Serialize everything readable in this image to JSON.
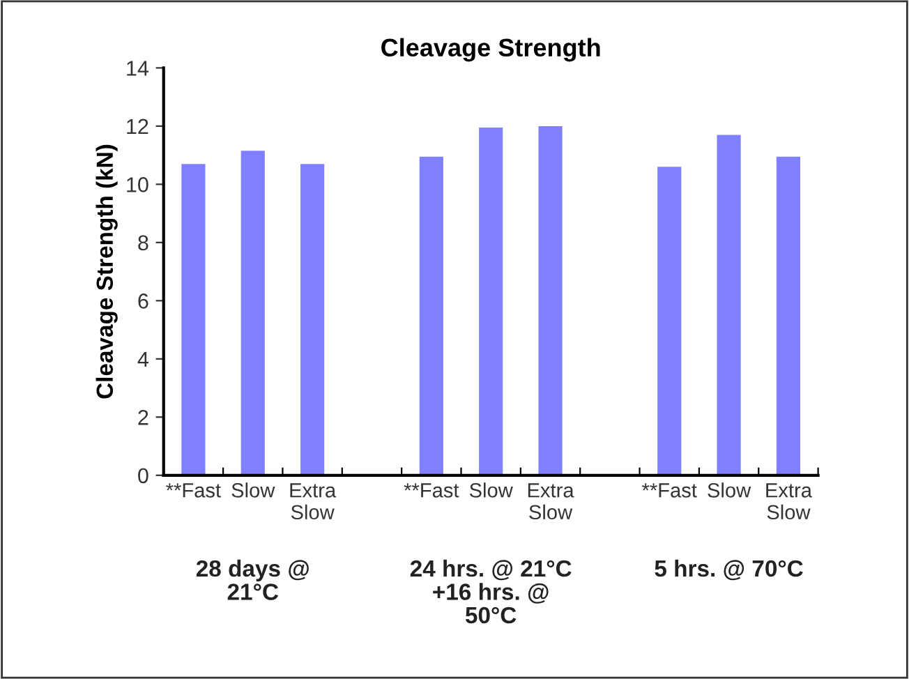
{
  "chart_data": {
    "type": "bar",
    "title": "Cleavage Strength",
    "ylabel": "Cleavage Strength (kN)",
    "categories": [
      "**Fast",
      "Slow",
      "Extra\nSlow",
      null,
      "**Fast",
      "Slow",
      "Extra\nSlow",
      null,
      "**Fast",
      "Slow",
      "Extra\nSlow"
    ],
    "values": [
      10.7,
      11.15,
      10.7,
      null,
      10.95,
      11.95,
      12.0,
      null,
      10.6,
      11.7,
      10.95
    ],
    "color": "#8080ff",
    "ylim": [
      0,
      14
    ],
    "yticks": [
      0,
      2,
      4,
      6,
      8,
      10,
      12,
      14
    ],
    "grid": false,
    "legend": false,
    "annotations": [
      "28 days @\n21°C",
      "24 hrs. @ 21°C\n+16 hrs. @\n50°C",
      "5 hrs. @ 70°C"
    ]
  }
}
